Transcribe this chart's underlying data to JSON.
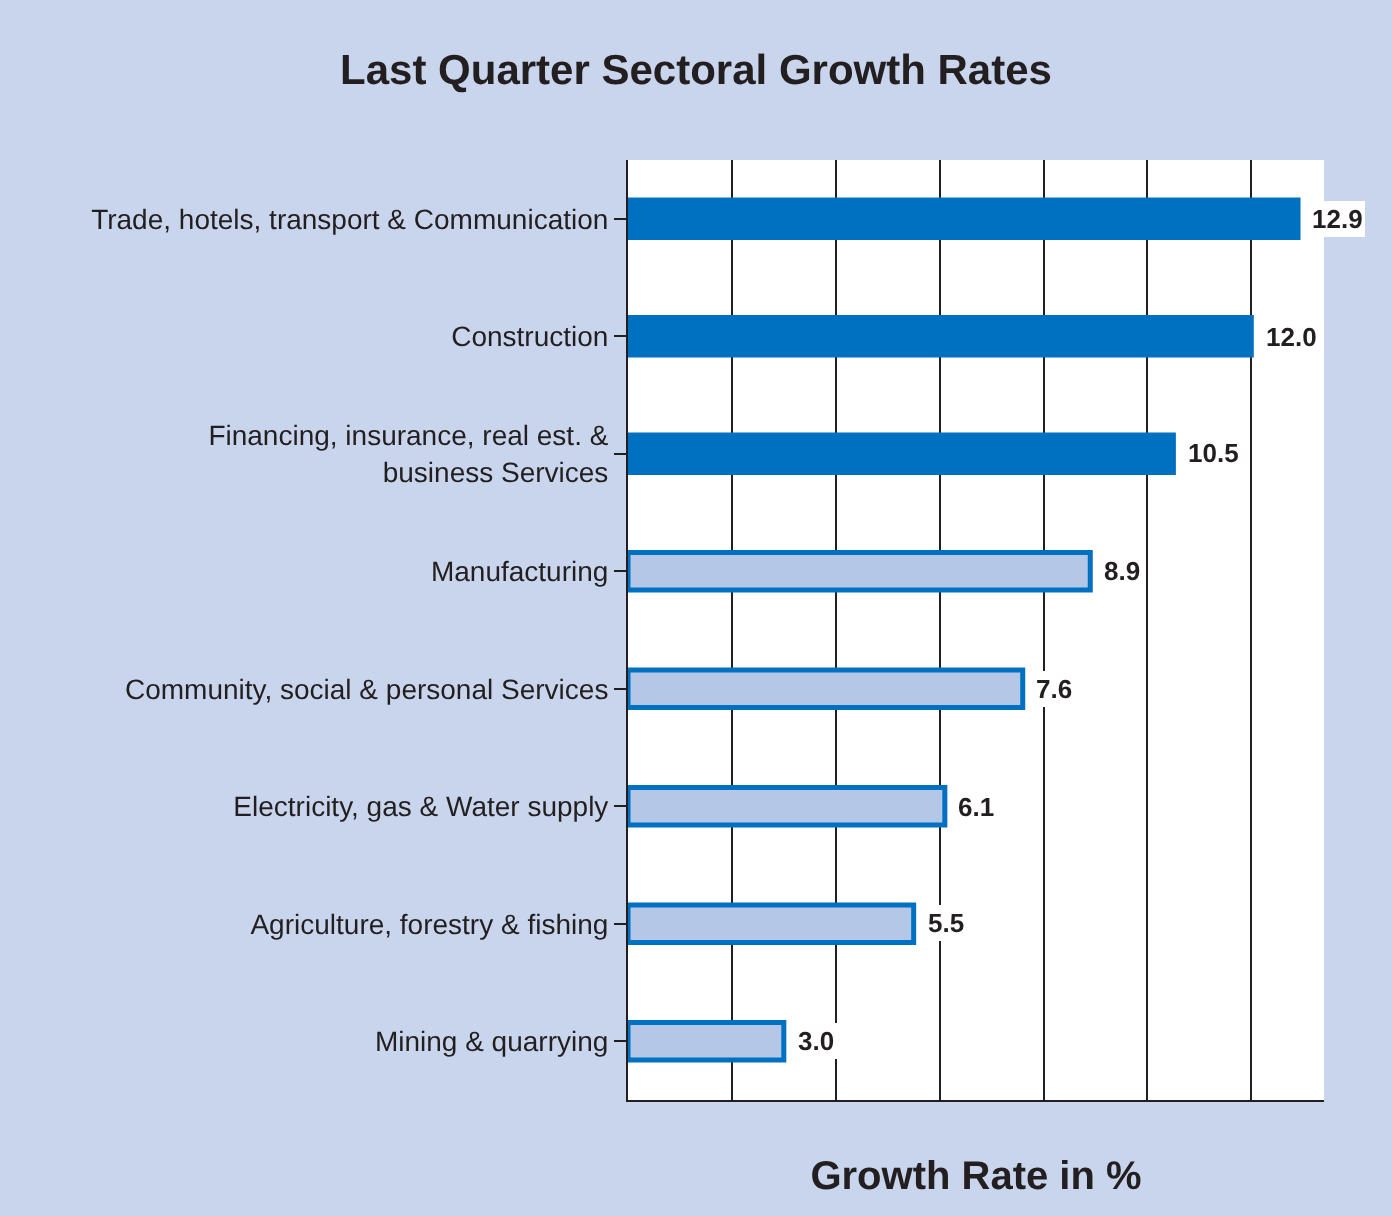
{
  "chart_data": {
    "type": "bar",
    "orientation": "horizontal",
    "title": "Last Quarter Sectoral Growth Rates",
    "xlabel": "Growth Rate in %",
    "categories": [
      "Trade, hotels, transport & Communication",
      "Construction",
      "Financing, insurance, real est. &\nbusiness Services",
      "Manufacturing",
      "Community, social & personal Services",
      "Electricity, gas & Water supply",
      "Agriculture, forestry & fishing",
      "Mining & quarrying"
    ],
    "series": [
      {
        "color": "#0070c0",
        "values": [
          12.9,
          12.0,
          10.5,
          8.9,
          7.6,
          6.1,
          5.5,
          3.0
        ],
        "colors": [
          "#0070c0",
          "#0070c0",
          "#0070c0",
          "#b4c7e7",
          "#b4c7e7",
          "#b4c7e7",
          "#b4c7e7",
          "#b4c7e7"
        ],
        "value_labels": [
          "12.9",
          "12.0",
          "10.5",
          "8.9",
          "7.6",
          "6.1",
          "5.5",
          "3.0"
        ]
      }
    ],
    "grid": "x",
    "tick_labels": "y",
    "xlim": [
      0,
      13.4
    ],
    "xticks": [
      {
        "value": 0,
        "label": null
      },
      {
        "value": 2,
        "label": null
      },
      {
        "value": 4,
        "label": null
      },
      {
        "value": 6,
        "label": null
      },
      {
        "value": 8,
        "label": null
      },
      {
        "value": 10,
        "label": null
      },
      {
        "value": 12,
        "label": null
      }
    ]
  }
}
